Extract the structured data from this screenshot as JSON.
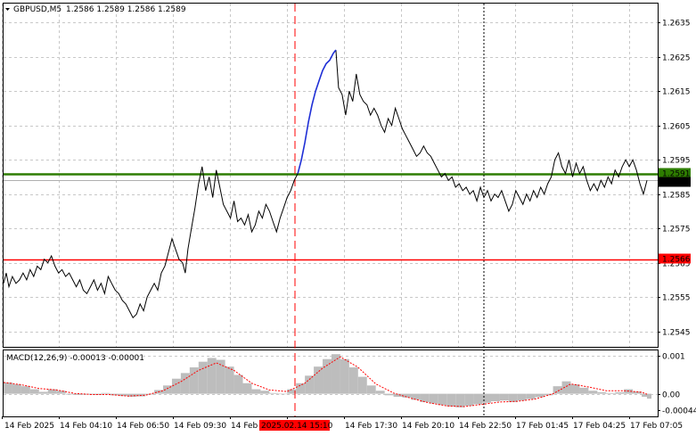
{
  "header": {
    "symbol": "GBPUSD,M5",
    "ohlc": "1.2586 1.2589 1.2586 1.2589"
  },
  "macd_header": "MACD(12,26,9) -0.00013 -0.00001",
  "colors": {
    "background": "#ffffff",
    "price_line": "#000000",
    "grid": "#c8c8c8",
    "green_level": "#2e7d00",
    "red_level": "#ff0000",
    "blue_segment": "#1f2fd6",
    "time_marker": "#ff0000",
    "macd_hist": "#bdbdbd",
    "macd_signal": "#ff0000",
    "bid_tag": "#000000"
  },
  "chart_data": [
    {
      "type": "line",
      "name": "",
      "y_ticks": [
        "1.2635",
        "1.2625",
        "1.2615",
        "1.2605",
        "1.2595",
        "1.2585",
        "1.2575",
        "1.2565",
        "1.2555",
        "1.2545"
      ],
      "ylim": [
        1.25405,
        1.26405
      ],
      "x_labels": [
        "14 Feb 2025",
        "14 Feb 04:10",
        "14 Feb 06:50",
        "14 Feb 09:30",
        "14 Feb",
        "2025.02.14 15:10",
        "14 Feb 17:30",
        "14 Feb 20:10",
        "14 Feb 22:50",
        "17 Feb 01:45",
        "17 Feb 04:25",
        "17 Feb 07:05"
      ],
      "levels": [
        {
          "value": 1.2591,
          "label": "1.2591",
          "color": "green"
        },
        {
          "value": 1.2566,
          "label": "1.2566",
          "color": "red"
        },
        {
          "value": 1.2589,
          "label": "1.2589",
          "color": "bid"
        }
      ],
      "price": [
        [
          0,
          1.2559
        ],
        [
          3,
          1.2562
        ],
        [
          6,
          1.2558
        ],
        [
          10,
          1.2561
        ],
        [
          14,
          1.2559
        ],
        [
          18,
          1.256
        ],
        [
          22,
          1.2562
        ],
        [
          26,
          1.256
        ],
        [
          30,
          1.2563
        ],
        [
          34,
          1.2561
        ],
        [
          38,
          1.2564
        ],
        [
          42,
          1.2563
        ],
        [
          46,
          1.2566
        ],
        [
          50,
          1.2565
        ],
        [
          54,
          1.2567
        ],
        [
          58,
          1.2564
        ],
        [
          62,
          1.2562
        ],
        [
          66,
          1.2563
        ],
        [
          70,
          1.2561
        ],
        [
          74,
          1.2562
        ],
        [
          78,
          1.256
        ],
        [
          82,
          1.2558
        ],
        [
          86,
          1.256
        ],
        [
          90,
          1.2557
        ],
        [
          94,
          1.2556
        ],
        [
          98,
          1.2558
        ],
        [
          102,
          1.256
        ],
        [
          106,
          1.2557
        ],
        [
          110,
          1.2559
        ],
        [
          114,
          1.2556
        ],
        [
          118,
          1.2561
        ],
        [
          122,
          1.2559
        ],
        [
          126,
          1.2557
        ],
        [
          130,
          1.2556
        ],
        [
          134,
          1.2554
        ],
        [
          138,
          1.2553
        ],
        [
          142,
          1.2551
        ],
        [
          146,
          1.2549
        ],
        [
          150,
          1.255
        ],
        [
          154,
          1.2553
        ],
        [
          158,
          1.2551
        ],
        [
          162,
          1.2555
        ],
        [
          166,
          1.2557
        ],
        [
          170,
          1.2559
        ],
        [
          174,
          1.2557
        ],
        [
          178,
          1.2562
        ],
        [
          182,
          1.2564
        ],
        [
          186,
          1.2568
        ],
        [
          190,
          1.2572
        ],
        [
          194,
          1.2569
        ],
        [
          198,
          1.2566
        ],
        [
          202,
          1.2565
        ],
        [
          205,
          1.2562
        ],
        [
          208,
          1.2569
        ],
        [
          212,
          1.2575
        ],
        [
          216,
          1.2581
        ],
        [
          220,
          1.2588
        ],
        [
          224,
          1.2593
        ],
        [
          228,
          1.2586
        ],
        [
          232,
          1.259
        ],
        [
          236,
          1.2584
        ],
        [
          240,
          1.2592
        ],
        [
          244,
          1.2587
        ],
        [
          248,
          1.2582
        ],
        [
          252,
          1.258
        ],
        [
          256,
          1.2578
        ],
        [
          260,
          1.2583
        ],
        [
          264,
          1.2577
        ],
        [
          268,
          1.2578
        ],
        [
          272,
          1.2576
        ],
        [
          276,
          1.2579
        ],
        [
          280,
          1.2574
        ],
        [
          284,
          1.2576
        ],
        [
          288,
          1.258
        ],
        [
          292,
          1.2578
        ],
        [
          296,
          1.2582
        ],
        [
          300,
          1.258
        ],
        [
          304,
          1.2577
        ],
        [
          308,
          1.2574
        ],
        [
          312,
          1.2578
        ],
        [
          316,
          1.2581
        ],
        [
          320,
          1.2584
        ],
        [
          324,
          1.2586
        ],
        [
          328,
          1.2589
        ],
        [
          332,
          1.2591
        ]
      ],
      "blue_segment": [
        [
          332,
          1.2591
        ],
        [
          336,
          1.2595
        ],
        [
          340,
          1.26
        ],
        [
          344,
          1.2606
        ],
        [
          348,
          1.2611
        ],
        [
          352,
          1.2615
        ],
        [
          356,
          1.2618
        ],
        [
          360,
          1.2621
        ],
        [
          364,
          1.2623
        ],
        [
          368,
          1.2624
        ],
        [
          372,
          1.2626
        ],
        [
          375,
          1.2627
        ]
      ],
      "price_after": [
        [
          375,
          1.2627
        ],
        [
          378,
          1.2616
        ],
        [
          382,
          1.2614
        ],
        [
          386,
          1.2608
        ],
        [
          390,
          1.2615
        ],
        [
          394,
          1.2612
        ],
        [
          398,
          1.262
        ],
        [
          402,
          1.2614
        ],
        [
          406,
          1.2612
        ],
        [
          410,
          1.2611
        ],
        [
          414,
          1.2608
        ],
        [
          418,
          1.261
        ],
        [
          422,
          1.2608
        ],
        [
          426,
          1.2605
        ],
        [
          430,
          1.2603
        ],
        [
          434,
          1.2607
        ],
        [
          438,
          1.2605
        ],
        [
          442,
          1.261
        ],
        [
          446,
          1.2607
        ],
        [
          450,
          1.2604
        ],
        [
          454,
          1.2602
        ],
        [
          458,
          1.26
        ],
        [
          462,
          1.2598
        ],
        [
          466,
          1.2596
        ],
        [
          470,
          1.2597
        ],
        [
          474,
          1.2599
        ],
        [
          478,
          1.2597
        ],
        [
          482,
          1.2596
        ],
        [
          486,
          1.2594
        ],
        [
          490,
          1.2592
        ],
        [
          494,
          1.259
        ],
        [
          498,
          1.2591
        ],
        [
          502,
          1.2589
        ],
        [
          506,
          1.259
        ],
        [
          510,
          1.2587
        ],
        [
          514,
          1.2588
        ],
        [
          518,
          1.2586
        ],
        [
          522,
          1.2587
        ],
        [
          526,
          1.2585
        ],
        [
          530,
          1.2586
        ],
        [
          534,
          1.2583
        ],
        [
          538,
          1.2587
        ],
        [
          542,
          1.2584
        ],
        [
          546,
          1.2586
        ],
        [
          550,
          1.2583
        ],
        [
          554,
          1.2585
        ],
        [
          558,
          1.2584
        ],
        [
          562,
          1.2586
        ],
        [
          566,
          1.2583
        ],
        [
          570,
          1.258
        ],
        [
          574,
          1.2582
        ],
        [
          578,
          1.2586
        ],
        [
          582,
          1.2584
        ],
        [
          586,
          1.2582
        ],
        [
          590,
          1.2585
        ],
        [
          594,
          1.2583
        ],
        [
          598,
          1.2586
        ],
        [
          602,
          1.2584
        ],
        [
          606,
          1.2587
        ],
        [
          610,
          1.2585
        ],
        [
          614,
          1.2588
        ],
        [
          618,
          1.259
        ],
        [
          622,
          1.2595
        ],
        [
          626,
          1.2597
        ],
        [
          630,
          1.2593
        ],
        [
          634,
          1.2591
        ],
        [
          638,
          1.2595
        ],
        [
          642,
          1.259
        ],
        [
          646,
          1.2594
        ],
        [
          650,
          1.2591
        ],
        [
          654,
          1.2593
        ],
        [
          658,
          1.2589
        ],
        [
          662,
          1.2586
        ],
        [
          666,
          1.2588
        ],
        [
          670,
          1.2586
        ],
        [
          674,
          1.2589
        ],
        [
          678,
          1.2587
        ],
        [
          682,
          1.259
        ],
        [
          686,
          1.2588
        ],
        [
          690,
          1.2592
        ],
        [
          694,
          1.259
        ],
        [
          698,
          1.2593
        ],
        [
          702,
          1.2595
        ],
        [
          706,
          1.2593
        ],
        [
          710,
          1.2595
        ],
        [
          714,
          1.2592
        ],
        [
          718,
          1.2588
        ],
        [
          722,
          1.2585
        ],
        [
          726,
          1.2589
        ]
      ]
    },
    {
      "type": "bar",
      "name": "",
      "y_ticks": [
        "0.001",
        "0.00",
        "-0.00044"
      ],
      "ylim": [
        -0.0006,
        0.00115
      ],
      "signal_color": "red",
      "histogram": [
        [
          0,
          0.0003
        ],
        [
          10,
          0.00025
        ],
        [
          20,
          0.0002
        ],
        [
          30,
          0.00012
        ],
        [
          40,
          5e-05
        ],
        [
          50,
          0.00012
        ],
        [
          60,
          8e-05
        ],
        [
          70,
          -2e-05
        ],
        [
          80,
          -3e-05
        ],
        [
          90,
          -1e-05
        ],
        [
          100,
          -3e-05
        ],
        [
          110,
          2e-05
        ],
        [
          120,
          -4e-05
        ],
        [
          130,
          -6e-05
        ],
        [
          140,
          -8e-05
        ],
        [
          150,
          -7e-05
        ],
        [
          160,
          -2e-05
        ],
        [
          170,
          0.0001
        ],
        [
          180,
          0.00022
        ],
        [
          190,
          0.0004
        ],
        [
          200,
          0.00055
        ],
        [
          210,
          0.0007
        ],
        [
          220,
          0.00085
        ],
        [
          230,
          0.00095
        ],
        [
          240,
          0.0009
        ],
        [
          250,
          0.00072
        ],
        [
          260,
          0.0005
        ],
        [
          270,
          0.00028
        ],
        [
          280,
          0.00012
        ],
        [
          290,
          8e-05
        ],
        [
          300,
          2e-05
        ],
        [
          310,
          0.0
        ],
        [
          320,
          0.00012
        ],
        [
          330,
          0.00028
        ],
        [
          340,
          0.00048
        ],
        [
          350,
          0.00072
        ],
        [
          360,
          0.00092
        ],
        [
          370,
          0.00105
        ],
        [
          380,
          0.00092
        ],
        [
          390,
          0.0007
        ],
        [
          400,
          0.00045
        ],
        [
          410,
          0.00022
        ],
        [
          420,
          8e-05
        ],
        [
          430,
          -4e-05
        ],
        [
          440,
          -8e-05
        ],
        [
          450,
          -0.0001
        ],
        [
          460,
          -0.00016
        ],
        [
          470,
          -0.00022
        ],
        [
          480,
          -0.00026
        ],
        [
          490,
          -0.0003
        ],
        [
          500,
          -0.00034
        ],
        [
          510,
          -0.00036
        ],
        [
          520,
          -0.00032
        ],
        [
          530,
          -0.00028
        ],
        [
          540,
          -0.00024
        ],
        [
          550,
          -0.0002
        ],
        [
          560,
          -0.00018
        ],
        [
          570,
          -0.00022
        ],
        [
          580,
          -0.00018
        ],
        [
          590,
          -0.00014
        ],
        [
          600,
          -9e-05
        ],
        [
          610,
          -4e-05
        ],
        [
          620,
          0.0002
        ],
        [
          630,
          0.00033
        ],
        [
          640,
          0.00025
        ],
        [
          650,
          0.00016
        ],
        [
          660,
          8e-05
        ],
        [
          670,
          4e-05
        ],
        [
          680,
          2e-05
        ],
        [
          690,
          4e-05
        ],
        [
          700,
          0.00012
        ],
        [
          710,
          6e-05
        ],
        [
          720,
          -8e-05
        ],
        [
          726,
          -0.00013
        ]
      ],
      "signal": [
        [
          0,
          0.0003
        ],
        [
          20,
          0.00024
        ],
        [
          40,
          0.00014
        ],
        [
          60,
          0.0001
        ],
        [
          80,
          1e-05
        ],
        [
          100,
          -2e-05
        ],
        [
          120,
          -2e-05
        ],
        [
          140,
          -6e-05
        ],
        [
          160,
          -4e-05
        ],
        [
          180,
          8e-05
        ],
        [
          200,
          0.00032
        ],
        [
          220,
          0.00062
        ],
        [
          240,
          0.00082
        ],
        [
          260,
          0.00062
        ],
        [
          280,
          0.00028
        ],
        [
          300,
          0.0001
        ],
        [
          320,
          6e-05
        ],
        [
          340,
          0.00028
        ],
        [
          360,
          0.00068
        ],
        [
          380,
          0.00098
        ],
        [
          400,
          0.0007
        ],
        [
          420,
          0.00026
        ],
        [
          440,
          2e-05
        ],
        [
          460,
          -0.00012
        ],
        [
          480,
          -0.00024
        ],
        [
          500,
          -0.00032
        ],
        [
          520,
          -0.00034
        ],
        [
          540,
          -0.00028
        ],
        [
          560,
          -0.00022
        ],
        [
          580,
          -0.0002
        ],
        [
          600,
          -0.00014
        ],
        [
          620,
          0.0
        ],
        [
          640,
          0.00026
        ],
        [
          660,
          0.00018
        ],
        [
          680,
          8e-05
        ],
        [
          700,
          8e-05
        ],
        [
          720,
          4e-05
        ],
        [
          726,
          -1e-05
        ]
      ]
    }
  ]
}
